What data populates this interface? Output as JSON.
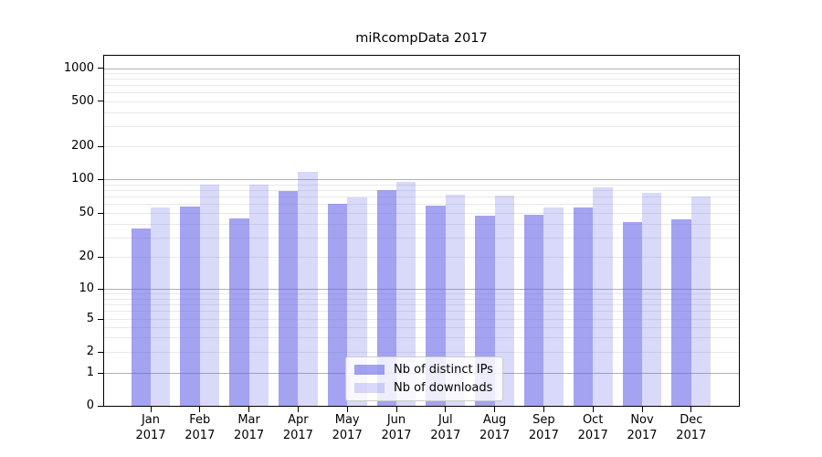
{
  "chart_data": {
    "type": "bar",
    "title": "miRcompData 2017",
    "categories": [
      "Jan",
      "Feb",
      "Mar",
      "Apr",
      "May",
      "Jun",
      "Jul",
      "Aug",
      "Sep",
      "Oct",
      "Nov",
      "Dec"
    ],
    "category_year": "2017",
    "series": [
      {
        "name": "Nb of distinct IPs",
        "color": "rgba(102,102,232,0.6)",
        "solid_color": "#a3a3f0",
        "values": [
          36,
          57,
          45,
          79,
          60,
          80,
          58,
          47,
          48,
          56,
          41,
          44
        ]
      },
      {
        "name": "Nb of downloads",
        "color": "rgba(102,102,232,0.25)",
        "solid_color": "#d8d8f9",
        "values": [
          56,
          89,
          89,
          116,
          69,
          95,
          73,
          72,
          56,
          85,
          75,
          70
        ]
      }
    ],
    "yscale": "log with 1-2-5 labeled ticks, linear segment between 0 and 1",
    "yticks": [
      0,
      1,
      2,
      5,
      10,
      20,
      50,
      100,
      200,
      500,
      1000
    ],
    "grid": "horizontal, minor light + major darker at powers of ten",
    "legend_position": "inside lower-center"
  },
  "colors": {
    "bar_distinct_ips": "#a3a3f0",
    "bar_downloads": "#d8d8f9",
    "grid_minor": "#e9e9e9",
    "grid_major": "#b0b0b0",
    "axis": "#000000",
    "background": "#ffffff"
  }
}
